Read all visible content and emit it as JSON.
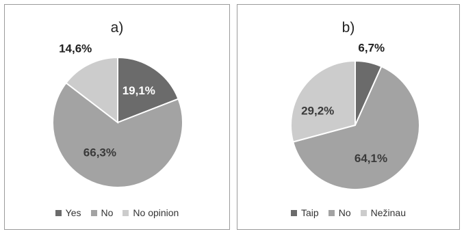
{
  "chart_data": [
    {
      "type": "pie",
      "title": "a)",
      "categories": [
        "Yes",
        "No",
        "No opinion"
      ],
      "values": [
        19.1,
        66.3,
        14.6
      ],
      "data_labels": [
        "19,1%",
        "66,3%",
        "14,6%"
      ],
      "colors": [
        "#6b6b6b",
        "#a3a3a3",
        "#cccccc"
      ],
      "start_angle_deg": 0,
      "direction": "clockwise",
      "legend": "bottom"
    },
    {
      "type": "pie",
      "title": "b)",
      "categories": [
        "Taip",
        "No",
        "Nežinau"
      ],
      "values": [
        6.7,
        64.1,
        29.2
      ],
      "data_labels": [
        "6,7%",
        "64,1%",
        "29,2%"
      ],
      "colors": [
        "#6b6b6b",
        "#a3a3a3",
        "#cccccc"
      ],
      "start_angle_deg": 0,
      "direction": "clockwise",
      "legend": "bottom"
    }
  ]
}
